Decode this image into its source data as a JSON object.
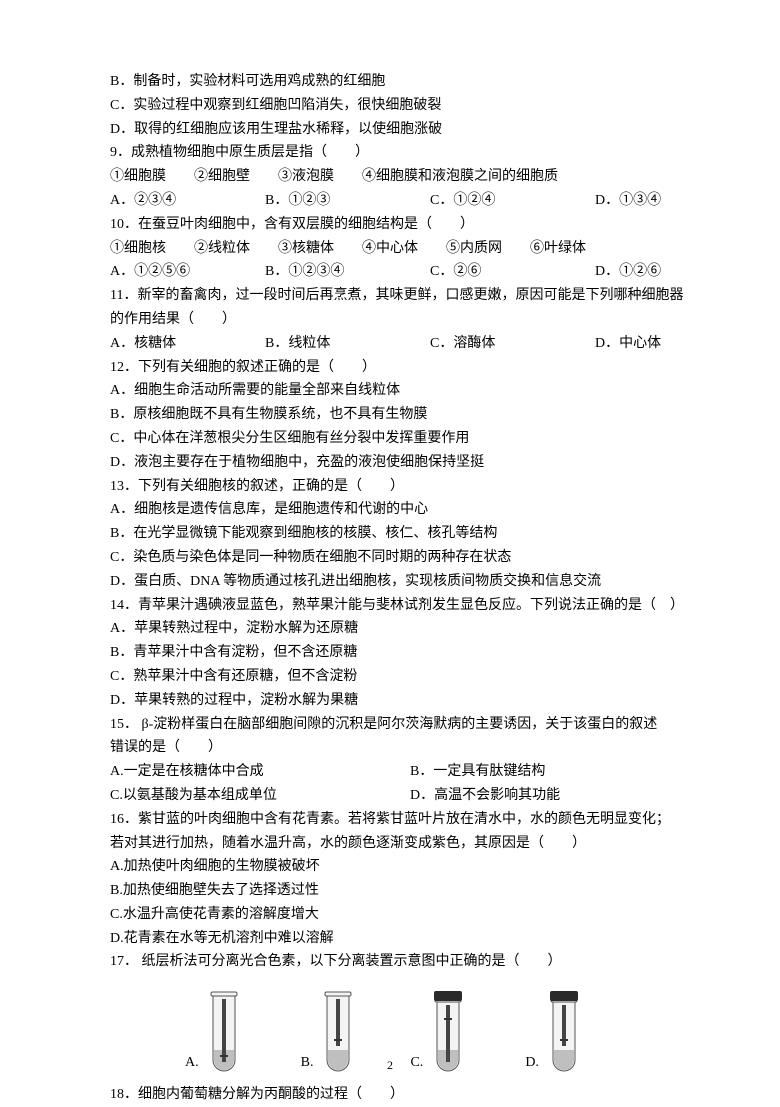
{
  "q8": {
    "b": "B．制备时，实验材料可选用鸡成熟的红细胞",
    "c": "C．实验过程中观察到红细胞凹陷消失，很快细胞破裂",
    "d": "D．取得的红细胞应该用生理盐水稀释，以使细胞涨破"
  },
  "q9": {
    "stem": "9．成熟植物细胞中原生质层是指（　　）",
    "items": "①细胞膜　　②细胞壁　　③液泡膜　　④细胞膜和液泡膜之间的细胞质",
    "a": "A．②③④",
    "b": "B．①②③",
    "c": "C．①②④",
    "d": "D．①③④"
  },
  "q10": {
    "stem": "10．在蚕豆叶肉细胞中，含有双层膜的细胞结构是（　　）",
    "items": "①细胞核　　②线粒体　　③核糖体　　④中心体　　⑤内质网　　⑥叶绿体",
    "a": "A．①②⑤⑥",
    "b": "B．①②③④",
    "c": "C．②⑥",
    "d": "D．①②⑥"
  },
  "q11": {
    "stem1": "11．新宰的畜禽肉，过一段时间后再烹煮，其味更鲜，口感更嫩，原因可能是下列哪种细胞器",
    "stem2": "的作用结果（　　）",
    "a": "A．核糖体",
    "b": "B．线粒体",
    "c": "C．溶酶体",
    "d": "D．中心体"
  },
  "q12": {
    "stem": "12．下列有关细胞的叙述正确的是（　　）",
    "a": "A．细胞生命活动所需要的能量全部来自线粒体",
    "b": "B．原核细胞既不具有生物膜系统，也不具有生物膜",
    "c": "C．中心体在洋葱根尖分生区细胞有丝分裂中发挥重要作用",
    "d": "D．液泡主要存在于植物细胞中，充盈的液泡使细胞保持坚挺"
  },
  "q13": {
    "stem": "13．下列有关细胞核的叙述，正确的是（　　）",
    "a": "A．细胞核是遗传信息库，是细胞遗传和代谢的中心",
    "b": "B．在光学显微镜下能观察到细胞核的核膜、核仁、核孔等结构",
    "c": "C．染色质与染色体是同一种物质在细胞不同时期的两种存在状态",
    "d": "D．蛋白质、DNA 等物质通过核孔进出细胞核，实现核质间物质交换和信息交流"
  },
  "q14": {
    "stem": "14．青苹果汁遇碘液显蓝色，熟苹果汁能与斐林试剂发生显色反应。下列说法正确的是（　）",
    "a": "A．苹果转熟过程中，淀粉水解为还原糖",
    "b": "B．青苹果汁中含有淀粉，但不含还原糖",
    "c": "C．熟苹果汁中含有还原糖，但不含淀粉",
    "d": "D．苹果转熟的过程中，淀粉水解为果糖"
  },
  "q15": {
    "stem1": "15． β-淀粉样蛋白在脑部细胞间隙的沉积是阿尔茨海默病的主要诱因，关于该蛋白的叙述",
    "stem2": "错误的是（　　）",
    "a": "A.一定是在核糖体中合成",
    "b": "B．一定具有肽键结构",
    "c": "C.以氨基酸为基本组成单位",
    "d": "D．高温不会影响其功能"
  },
  "q16": {
    "stem1": "16．紫甘蓝的叶肉细胞中含有花青素。若将紫甘蓝叶片放在清水中，水的颜色无明显变化；",
    "stem2": "若对其进行加热，随着水温升高，水的颜色逐渐变成紫色，其原因是（　　）",
    "a": "A.加热使叶肉细胞的生物膜被破坏",
    "b": "B.加热使细胞壁失去了选择透过性",
    "c": "C.水温升高使花青素的溶解度增大",
    "d": "D.花青素在水等无机溶剂中难以溶解"
  },
  "q17": {
    "stem": "17． 纸层析法可分离光合色素，以下分离装置示意图中正确的是（　　）",
    "a": "A.",
    "b": "B.",
    "c": "C.",
    "d": "D.",
    "tubes": {
      "body_fill": "#f4f4f4",
      "body_stroke": "#555555",
      "liquid_fill": "#bfbfbf",
      "cap_fill": "#2a2a2a",
      "strip_stroke": "#444444",
      "band_stroke": "#333333",
      "width": 34,
      "height": 86
    }
  },
  "q18": {
    "stem": "18．细胞内葡萄糖分解为丙酮酸的过程（　　）"
  },
  "page": "2"
}
